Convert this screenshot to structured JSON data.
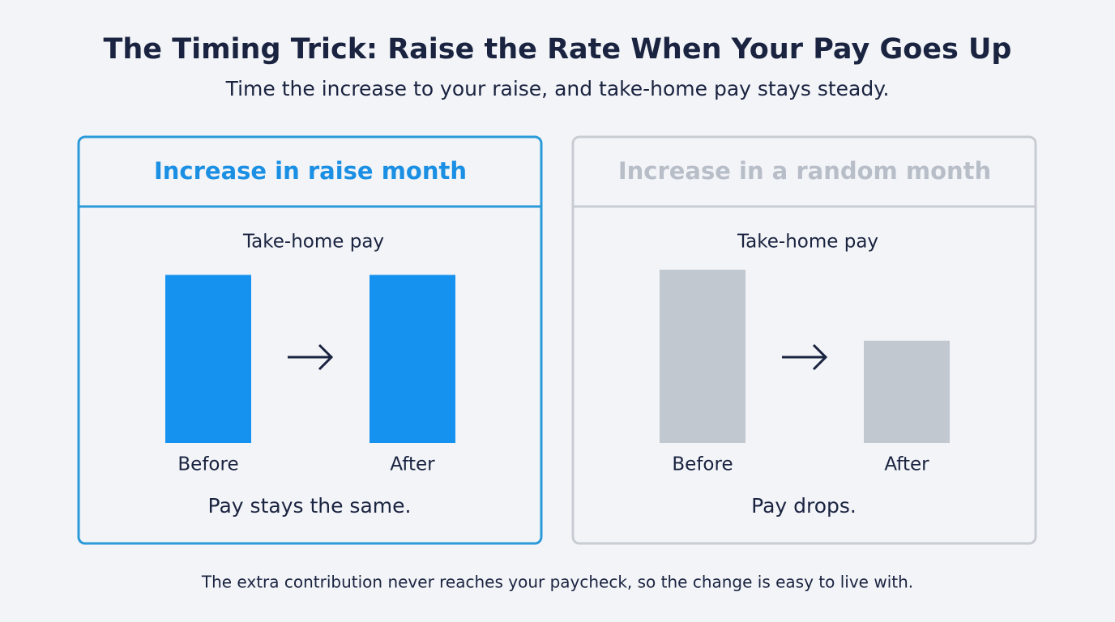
{
  "title": "The Timing Trick: Raise the Rate When Your Pay Goes Up",
  "subtitle": "Time the increase to your raise, and take-home pay stays steady.",
  "panels": [
    {
      "heading": "Increase in raise month",
      "heading_color": "#1a8fe3",
      "border_color": "#2a9ad8",
      "chart": {
        "type": "bar",
        "title": "Take-home pay",
        "categories": [
          "Before",
          "After"
        ],
        "values": [
          97,
          97
        ],
        "color": "#1592f0",
        "ylim": [
          0,
          100
        ]
      },
      "caption": "Pay stays the same."
    },
    {
      "heading": "Increase in a random month",
      "heading_color": "#b8bec8",
      "border_color": "#c8ccd3",
      "chart": {
        "type": "bar",
        "title": "Take-home pay",
        "categories": [
          "Before",
          "After"
        ],
        "values": [
          100,
          59
        ],
        "color": "#c1c8d0",
        "ylim": [
          0,
          100
        ]
      },
      "caption": "Pay drops."
    }
  ],
  "footer": "The extra contribution never reaches your paycheck, so the change is easy to live with."
}
